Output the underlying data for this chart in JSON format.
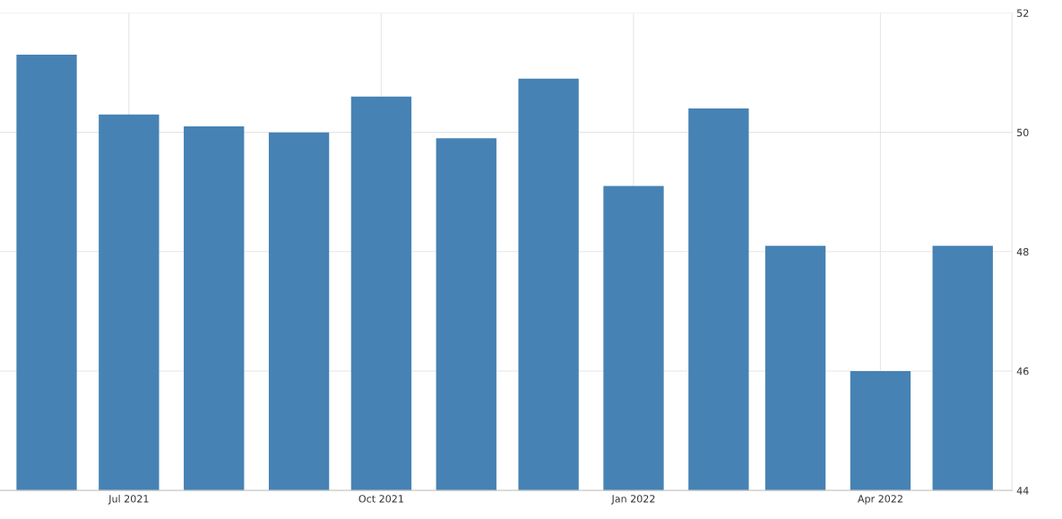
{
  "chart_data": {
    "type": "bar",
    "x": [
      "2021-06",
      "2021-07",
      "2021-08",
      "2021-09",
      "2021-10",
      "2021-11",
      "2021-12",
      "2022-01",
      "2022-02",
      "2022-03",
      "2022-04",
      "2022-05"
    ],
    "values": [
      51.3,
      50.3,
      50.1,
      50.0,
      50.6,
      49.9,
      50.9,
      49.1,
      50.4,
      48.1,
      46.0,
      48.1
    ],
    "color": "#4682b4",
    "xlim": [
      "2021-05-15",
      "2022-05-19"
    ],
    "xticks": [
      {
        "value": "2021-07",
        "label": "Jul 2021"
      },
      {
        "value": "2021-10",
        "label": "Oct 2021"
      },
      {
        "value": "2022-01",
        "label": "Jan 2022"
      },
      {
        "value": "2022-04",
        "label": "Apr 2022"
      }
    ],
    "ylim": [
      44,
      52
    ],
    "yticks": [
      44,
      46,
      48,
      50,
      52
    ],
    "grid": true
  }
}
